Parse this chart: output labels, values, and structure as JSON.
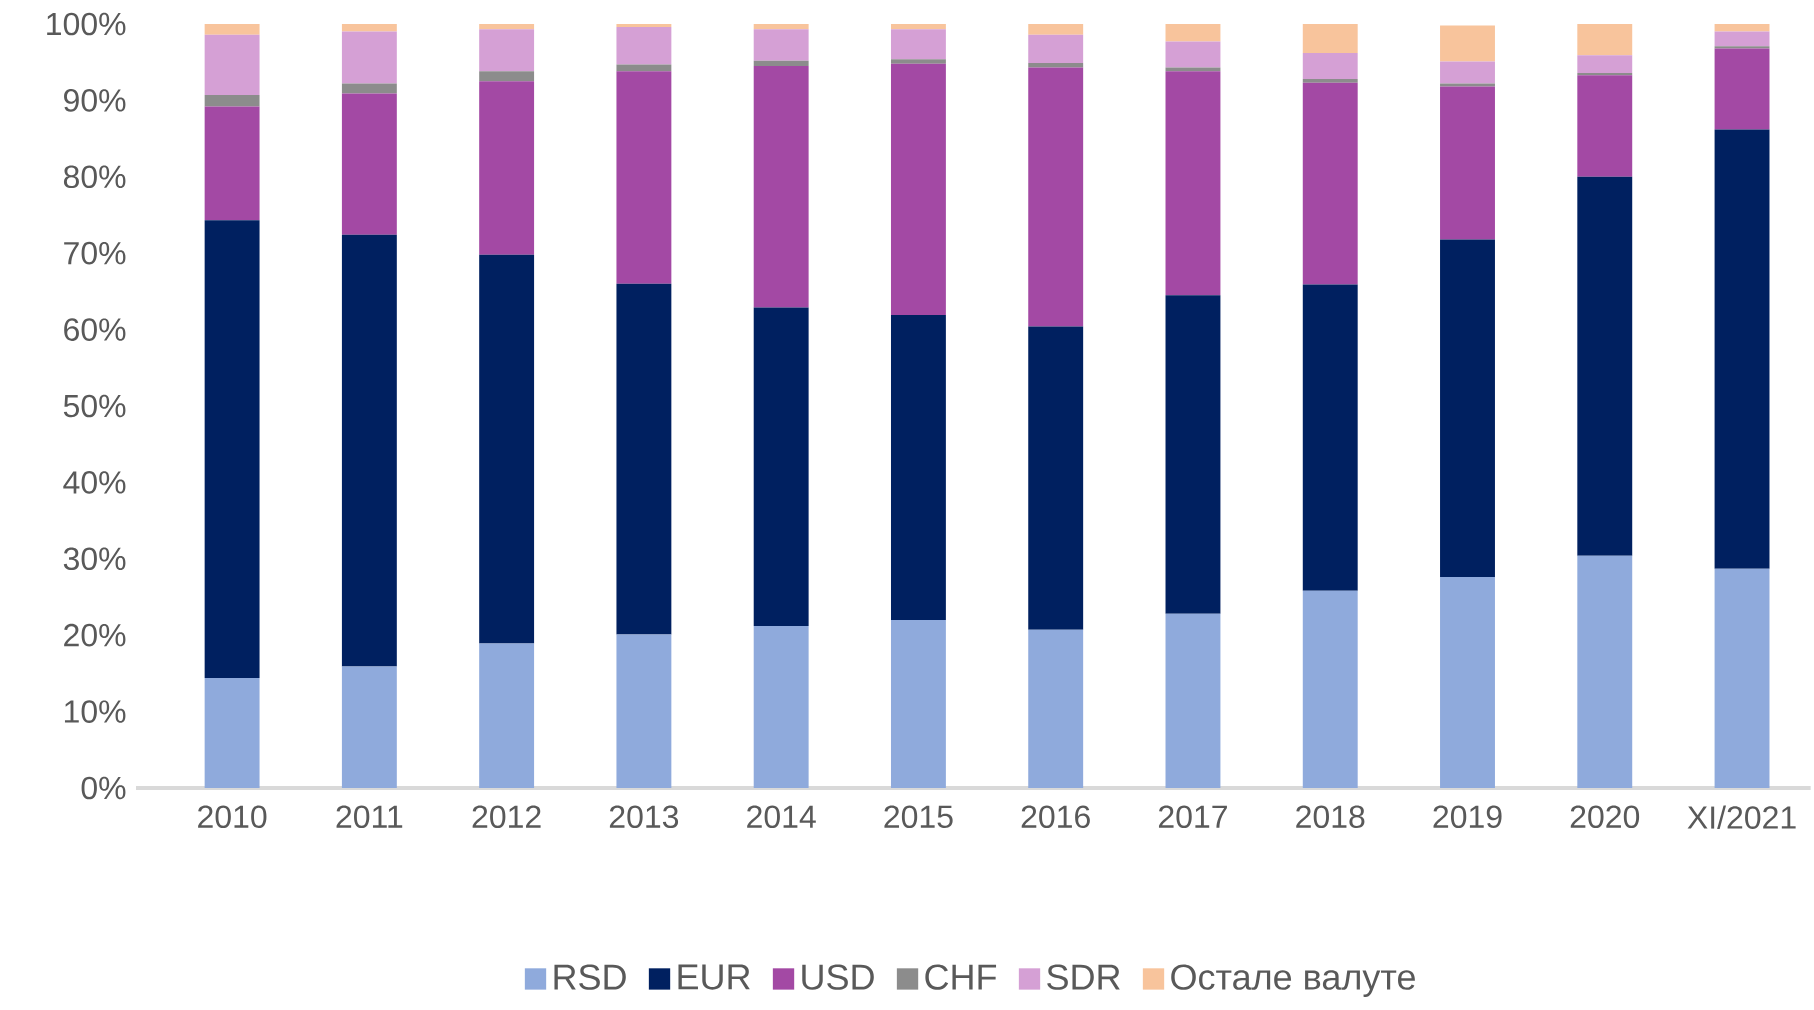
{
  "chart_data": {
    "type": "bar",
    "stacked": true,
    "legend": "bottom",
    "categories": [
      "2010",
      "2011",
      "2012",
      "2013",
      "2014",
      "2015",
      "2016",
      "2017",
      "2018",
      "2019",
      "2020",
      "XI/2021"
    ],
    "series": [
      {
        "name": "RSD",
        "color": "#8faadc",
        "values": [
          14.4,
          15.9,
          18.9,
          20.1,
          21.2,
          22.0,
          20.7,
          22.8,
          25.8,
          27.6,
          30.4,
          28.7
        ]
      },
      {
        "name": "EUR",
        "color": "#002060",
        "values": [
          59.9,
          56.5,
          50.9,
          45.9,
          41.7,
          39.9,
          39.7,
          41.7,
          40.1,
          44.2,
          49.6,
          57.5
        ]
      },
      {
        "name": "USD",
        "color": "#a349a4",
        "values": [
          14.9,
          18.5,
          22.7,
          27.8,
          31.6,
          32.9,
          33.9,
          29.3,
          26.4,
          20.0,
          13.3,
          10.6
        ]
      },
      {
        "name": "CHF",
        "color": "#8c8c8c",
        "values": [
          1.5,
          1.3,
          1.3,
          0.9,
          0.7,
          0.6,
          0.6,
          0.5,
          0.5,
          0.4,
          0.3,
          0.3
        ]
      },
      {
        "name": "SDR",
        "color": "#d5a0d5",
        "values": [
          7.9,
          6.8,
          5.5,
          4.9,
          4.1,
          3.9,
          3.7,
          3.4,
          3.4,
          2.9,
          2.3,
          1.9
        ]
      },
      {
        "name": "Остале валуте",
        "color": "#f8c49c",
        "values": [
          1.4,
          1.0,
          0.7,
          0.4,
          0.7,
          0.7,
          1.4,
          2.3,
          3.8,
          4.7,
          4.1,
          1.0
        ]
      }
    ],
    "ylim": [
      0,
      100
    ],
    "yticks": [
      {
        "value": 0,
        "label": "0%"
      },
      {
        "value": 10,
        "label": "10%"
      },
      {
        "value": 20,
        "label": "20%"
      },
      {
        "value": 30,
        "label": "30%"
      },
      {
        "value": 40,
        "label": "40%"
      },
      {
        "value": 50,
        "label": "50%"
      },
      {
        "value": 60,
        "label": "60%"
      },
      {
        "value": 70,
        "label": "70%"
      },
      {
        "value": 80,
        "label": "80%"
      },
      {
        "value": 90,
        "label": "90%"
      },
      {
        "value": 100,
        "label": "100%"
      }
    ]
  }
}
